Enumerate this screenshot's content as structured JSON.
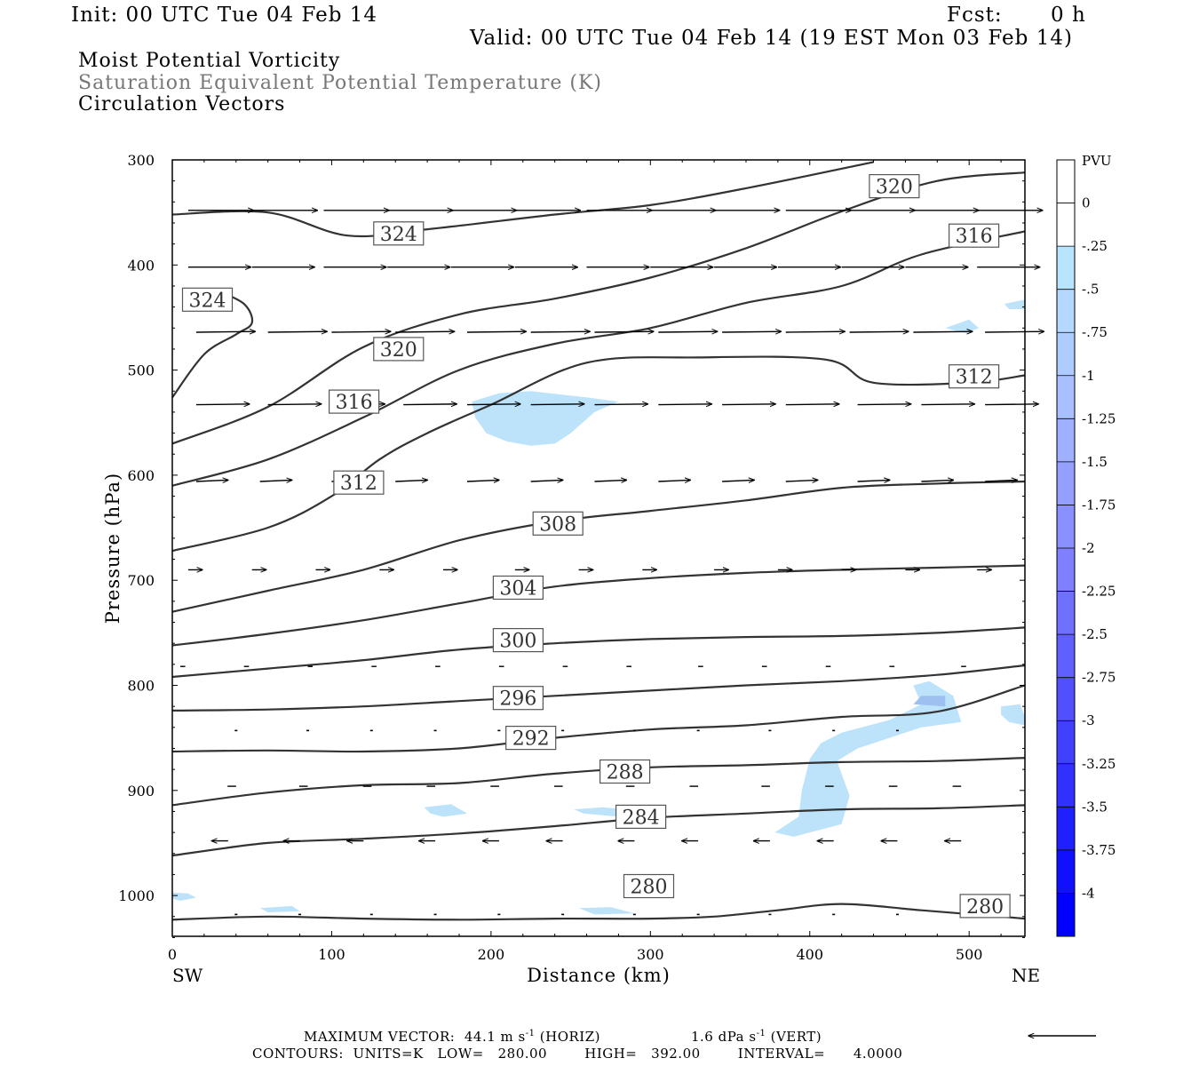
{
  "header": {
    "init": "Init: 00 UTC Tue 04 Feb 14",
    "fcst_label": "Fcst:",
    "fcst_value": "0 h",
    "valid": "Valid: 00 UTC Tue 04 Feb 14 (19 EST Mon 03 Feb 14)"
  },
  "titles": {
    "line1": "Moist Potential Vorticity",
    "line2": "Saturation Equivalent Potential Temperature (K)",
    "line3": "Circulation Vectors"
  },
  "chart_data": {
    "type": "cross-section",
    "xlabel": "Distance (km)",
    "ylabel": "Pressure (hPa)",
    "xlim": [
      0,
      535
    ],
    "ylim": [
      1040,
      300
    ],
    "x_ticks": [
      0,
      100,
      200,
      300,
      400,
      500
    ],
    "y_ticks": [
      300,
      400,
      500,
      600,
      700,
      800,
      900,
      1000
    ],
    "x_end_labels": {
      "left": "SW",
      "right": "NE"
    },
    "contour_labels": [
      {
        "text": "320",
        "x": 453,
        "p": 325
      },
      {
        "text": "324",
        "x": 142,
        "p": 370
      },
      {
        "text": "316",
        "x": 503,
        "p": 372
      },
      {
        "text": "324",
        "x": 22,
        "p": 433
      },
      {
        "text": "320",
        "x": 142,
        "p": 480
      },
      {
        "text": "312",
        "x": 503,
        "p": 506
      },
      {
        "text": "316",
        "x": 114,
        "p": 530
      },
      {
        "text": "312",
        "x": 117,
        "p": 607
      },
      {
        "text": "308",
        "x": 242,
        "p": 646
      },
      {
        "text": "304",
        "x": 217,
        "p": 707
      },
      {
        "text": "300",
        "x": 217,
        "p": 757
      },
      {
        "text": "296",
        "x": 217,
        "p": 812
      },
      {
        "text": "292",
        "x": 225,
        "p": 850
      },
      {
        "text": "288",
        "x": 284,
        "p": 882
      },
      {
        "text": "284",
        "x": 294,
        "p": 925
      },
      {
        "text": "280",
        "x": 299,
        "p": 991
      },
      {
        "text": "280",
        "x": 510,
        "p": 1010
      }
    ],
    "contours": [
      {
        "level": 280,
        "points": [
          [
            0,
            1023
          ],
          [
            60,
            1020
          ],
          [
            120,
            1022
          ],
          [
            180,
            1023
          ],
          [
            240,
            1022
          ],
          [
            300,
            1022
          ],
          [
            340,
            1020
          ],
          [
            380,
            1014
          ],
          [
            420,
            1008
          ],
          [
            470,
            1014
          ],
          [
            535,
            1022
          ]
        ]
      },
      {
        "level": 284,
        "points": [
          [
            0,
            962
          ],
          [
            60,
            950
          ],
          [
            120,
            946
          ],
          [
            180,
            941
          ],
          [
            240,
            934
          ],
          [
            300,
            926
          ],
          [
            360,
            922
          ],
          [
            420,
            918
          ],
          [
            480,
            917
          ],
          [
            535,
            914
          ]
        ]
      },
      {
        "level": 288,
        "points": [
          [
            0,
            914
          ],
          [
            60,
            902
          ],
          [
            120,
            895
          ],
          [
            180,
            893
          ],
          [
            240,
            884
          ],
          [
            300,
            878
          ],
          [
            360,
            876
          ],
          [
            420,
            873
          ],
          [
            480,
            872
          ],
          [
            535,
            869
          ]
        ]
      },
      {
        "level": 292,
        "points": [
          [
            0,
            863
          ],
          [
            60,
            862
          ],
          [
            120,
            863
          ],
          [
            180,
            860
          ],
          [
            240,
            850
          ],
          [
            300,
            842
          ],
          [
            360,
            838
          ],
          [
            420,
            830
          ],
          [
            480,
            825
          ],
          [
            535,
            800
          ]
        ]
      },
      {
        "level": 296,
        "points": [
          [
            0,
            824
          ],
          [
            60,
            823
          ],
          [
            120,
            820
          ],
          [
            180,
            815
          ],
          [
            240,
            810
          ],
          [
            300,
            805
          ],
          [
            360,
            800
          ],
          [
            420,
            796
          ],
          [
            480,
            790
          ],
          [
            535,
            781
          ]
        ]
      },
      {
        "level": 300,
        "points": [
          [
            0,
            792
          ],
          [
            60,
            784
          ],
          [
            120,
            776
          ],
          [
            180,
            766
          ],
          [
            240,
            760
          ],
          [
            300,
            756
          ],
          [
            360,
            754
          ],
          [
            420,
            753
          ],
          [
            480,
            750
          ],
          [
            535,
            745
          ]
        ]
      },
      {
        "level": 304,
        "points": [
          [
            0,
            762
          ],
          [
            60,
            751
          ],
          [
            120,
            738
          ],
          [
            180,
            722
          ],
          [
            240,
            706
          ],
          [
            300,
            698
          ],
          [
            360,
            693
          ],
          [
            420,
            690
          ],
          [
            480,
            688
          ],
          [
            535,
            686
          ]
        ]
      },
      {
        "level": 308,
        "points": [
          [
            0,
            730
          ],
          [
            60,
            710
          ],
          [
            120,
            690
          ],
          [
            180,
            662
          ],
          [
            240,
            644
          ],
          [
            300,
            634
          ],
          [
            360,
            624
          ],
          [
            420,
            612
          ],
          [
            480,
            608
          ],
          [
            535,
            606
          ]
        ]
      },
      {
        "level": 312,
        "points": [
          [
            0,
            672
          ],
          [
            60,
            650
          ],
          [
            100,
            620
          ],
          [
            130,
            585
          ],
          [
            160,
            560
          ],
          [
            200,
            533
          ],
          [
            260,
            493
          ],
          [
            330,
            488
          ],
          [
            410,
            490
          ],
          [
            440,
            512
          ],
          [
            500,
            512
          ],
          [
            535,
            505
          ]
        ]
      },
      {
        "level": 316,
        "points": [
          [
            0,
            610
          ],
          [
            60,
            585
          ],
          [
            120,
            545
          ],
          [
            180,
            500
          ],
          [
            240,
            475
          ],
          [
            300,
            460
          ],
          [
            360,
            436
          ],
          [
            420,
            420
          ],
          [
            470,
            390
          ],
          [
            535,
            368
          ]
        ]
      },
      {
        "level": 320,
        "points": [
          [
            0,
            570
          ],
          [
            60,
            535
          ],
          [
            120,
            478
          ],
          [
            180,
            447
          ],
          [
            240,
            432
          ],
          [
            300,
            412
          ],
          [
            360,
            384
          ],
          [
            420,
            349
          ],
          [
            480,
            320
          ],
          [
            535,
            312
          ]
        ]
      },
      {
        "level": 324,
        "points": [
          [
            0,
            352
          ],
          [
            60,
            350
          ],
          [
            110,
            372
          ],
          [
            160,
            366
          ],
          [
            240,
            352
          ],
          [
            300,
            343
          ],
          [
            360,
            327
          ],
          [
            440,
            302
          ]
        ]
      },
      {
        "level": 324,
        "points": [
          [
            0,
            526
          ],
          [
            20,
            485
          ],
          [
            40,
            466
          ],
          [
            50,
            455
          ],
          [
            45,
            437
          ],
          [
            28,
            424
          ]
        ]
      }
    ],
    "pv_colorbar": {
      "label": "PVU",
      "levels": [
        "0",
        "-.25",
        "-.5",
        "-.75",
        "-1",
        "-1.25",
        "-1.5",
        "-1.75",
        "-2",
        "-2.25",
        "-2.5",
        "-2.75",
        "-3",
        "-3.25",
        "-3.5",
        "-3.75",
        "-4"
      ],
      "colors": [
        "#ffffff",
        "#ffffff",
        "#b9e4ff",
        "#b4d8ff",
        "#aeccff",
        "#a8c0ff",
        "#9eb0ff",
        "#94a0ff",
        "#8a90ff",
        "#7e80ff",
        "#7070ff",
        "#6060ff",
        "#5050ff",
        "#4040ff",
        "#3030ff",
        "#2020ff",
        "#1010ff",
        "#0000ff"
      ]
    },
    "pv_regions": [
      {
        "value": -0.5,
        "points": [
          [
            188,
            530
          ],
          [
            205,
            522
          ],
          [
            225,
            520
          ],
          [
            260,
            526
          ],
          [
            280,
            530
          ],
          [
            265,
            540
          ],
          [
            250,
            560
          ],
          [
            240,
            570
          ],
          [
            225,
            572
          ],
          [
            210,
            568
          ],
          [
            197,
            560
          ],
          [
            190,
            545
          ]
        ]
      },
      {
        "value": -0.5,
        "points": [
          [
            485,
            460
          ],
          [
            500,
            452
          ],
          [
            506,
            460
          ],
          [
            498,
            465
          ]
        ]
      },
      {
        "value": -0.5,
        "points": [
          [
            522,
            437
          ],
          [
            535,
            433
          ],
          [
            535,
            442
          ],
          [
            525,
            442
          ]
        ]
      },
      {
        "value": -0.5,
        "points": [
          [
            420,
            845
          ],
          [
            450,
            833
          ],
          [
            470,
            818
          ],
          [
            465,
            800
          ],
          [
            475,
            796
          ],
          [
            490,
            810
          ],
          [
            495,
            835
          ],
          [
            470,
            840
          ],
          [
            430,
            860
          ],
          [
            417,
            872
          ],
          [
            425,
            905
          ],
          [
            420,
            932
          ],
          [
            390,
            944
          ],
          [
            378,
            940
          ],
          [
            393,
            925
          ],
          [
            395,
            900
          ],
          [
            400,
            870
          ],
          [
            407,
            855
          ]
        ]
      },
      {
        "value": -0.75,
        "points": [
          [
            465,
            818
          ],
          [
            470,
            810
          ],
          [
            485,
            810
          ],
          [
            485,
            820
          ]
        ]
      },
      {
        "value": -0.5,
        "points": [
          [
            520,
            820
          ],
          [
            532,
            818
          ],
          [
            535,
            830
          ],
          [
            535,
            838
          ],
          [
            525,
            835
          ],
          [
            520,
            828
          ]
        ]
      },
      {
        "value": -0.5,
        "points": [
          [
            158,
            916
          ],
          [
            175,
            913
          ],
          [
            185,
            922
          ],
          [
            170,
            925
          ],
          [
            162,
            922
          ]
        ]
      },
      {
        "value": -0.5,
        "points": [
          [
            252,
            918
          ],
          [
            270,
            916
          ],
          [
            292,
            919
          ],
          [
            280,
            925
          ],
          [
            258,
            922
          ]
        ]
      },
      {
        "value": -0.5,
        "points": [
          [
            255,
            1012
          ],
          [
            275,
            1011
          ],
          [
            290,
            1017
          ],
          [
            265,
            1018
          ]
        ]
      },
      {
        "value": -0.5,
        "points": [
          [
            0,
            997
          ],
          [
            10,
            998
          ],
          [
            15,
            1002
          ],
          [
            5,
            1005
          ],
          [
            0,
            1003
          ]
        ]
      },
      {
        "value": -0.5,
        "points": [
          [
            55,
            1012
          ],
          [
            75,
            1010
          ],
          [
            80,
            1015
          ],
          [
            60,
            1016
          ]
        ]
      }
    ],
    "vector_rows": [
      {
        "p": 348,
        "x": [
          10,
          50,
          95,
          135,
          175,
          215,
          260,
          300,
          340,
          385,
          425,
          465,
          505
        ],
        "u": 0.92,
        "w": 0
      },
      {
        "p": 402,
        "x": [
          10,
          50,
          95,
          135,
          175,
          215,
          260,
          300,
          340,
          380,
          420,
          460,
          505
        ],
        "u": 0.88,
        "w": 0
      },
      {
        "p": 464,
        "x": [
          15,
          60,
          100,
          140,
          185,
          225,
          265,
          305,
          345,
          385,
          425,
          465,
          510
        ],
        "u": 0.83,
        "w": 0.01
      },
      {
        "p": 533,
        "x": [
          15,
          60,
          100,
          145,
          185,
          225,
          265,
          305,
          345,
          385,
          430,
          470,
          510
        ],
        "u": 0.75,
        "w": 0.01
      },
      {
        "p": 606,
        "x": [
          15,
          55,
          100,
          140,
          185,
          225,
          265,
          305,
          345,
          385,
          430,
          470,
          510
        ],
        "u": 0.45,
        "w": 0.02
      },
      {
        "p": 690,
        "x": [
          10,
          50,
          90,
          130,
          170,
          215,
          255,
          295,
          340,
          380,
          420,
          460,
          505
        ],
        "u": 0.2,
        "w": 0
      },
      {
        "p": 782,
        "x": [
          5,
          45,
          85,
          125,
          165,
          205,
          245,
          285,
          330,
          370,
          410,
          450,
          495
        ],
        "u": 0.07,
        "w": 0
      },
      {
        "p": 843,
        "x": [
          40,
          85,
          125,
          165,
          205,
          245,
          290,
          330,
          375,
          415,
          455
        ],
        "u": 0.02,
        "w": 0
      },
      {
        "p": 896,
        "x": [
          40,
          85,
          125,
          165,
          205,
          245,
          290,
          330,
          375,
          415,
          455,
          495
        ],
        "u": -0.12,
        "w": 0
      },
      {
        "p": 948,
        "x": [
          35,
          80,
          120,
          165,
          205,
          245,
          290,
          330,
          375,
          415,
          455,
          495
        ],
        "u": -0.23,
        "w": 0
      },
      {
        "p": 1018,
        "x": [
          40,
          80,
          125,
          165,
          205,
          245,
          290,
          330,
          375,
          415,
          455,
          495
        ],
        "u": 0.02,
        "w": 0
      }
    ],
    "reference_arrow": {
      "u": -1
    }
  },
  "footer": {
    "max_vector_label": "MAXIMUM VECTOR:",
    "horiz_value": "44.1 m s",
    "horiz_unit": "(HORIZ)",
    "vert_value": "1.6 dPa s",
    "vert_unit": "(VERT)",
    "superscript": "-1",
    "contours_line": "CONTOURS:  UNITS=K   LOW=   280.00        HIGH=   392.00        INTERVAL=      4.0000"
  }
}
